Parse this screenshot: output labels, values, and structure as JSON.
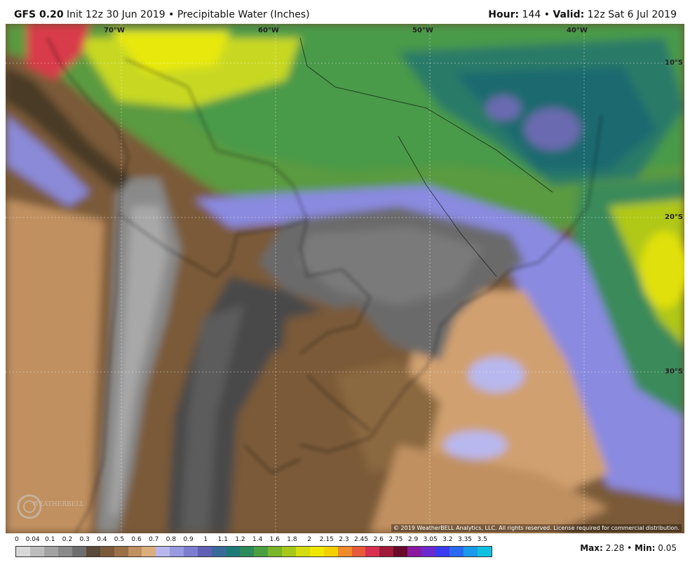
{
  "header": {
    "model": "GFS 0.20",
    "init": "Init 12z 30 Jun 2019",
    "separator": "•",
    "product": "Precipitable Water (Inches)",
    "hour_label": "Hour:",
    "hour_value": "144",
    "valid_label": "Valid:",
    "valid_value": "12z Sat 6 Jul 2019"
  },
  "map": {
    "lon_labels": [
      "70°W",
      "60°W",
      "50°W",
      "40°W"
    ],
    "lat_labels": [
      "10°S",
      "20°S",
      "30°S"
    ],
    "copyright": "© 2019 WeatherBELL Analytics, LLC. All rights reserved. License required for commercial distribution.",
    "logo_text": "WEATHERBELL"
  },
  "legend": {
    "ticks": [
      "0",
      "0.04",
      "0.1",
      "0.2",
      "0.3",
      "0.4",
      "0.5",
      "0.6",
      "0.7",
      "0.8",
      "0.9",
      "1",
      "1.1",
      "1.2",
      "1.4",
      "1.6",
      "1.8",
      "2",
      "2.15",
      "2.3",
      "2.45",
      "2.6",
      "2.75",
      "2.9",
      "3.05",
      "3.2",
      "3.35",
      "3.5"
    ],
    "colors": [
      "#d8d8d8",
      "#bdbdbd",
      "#a3a3a3",
      "#8a8a8a",
      "#6e6e6e",
      "#5a4a38",
      "#7a5a3a",
      "#9a7046",
      "#c09060",
      "#dcae7c",
      "#b8b8ee",
      "#9a9ae0",
      "#7e7ed0",
      "#6060b4",
      "#3a6a9a",
      "#1e7a78",
      "#2a8a5a",
      "#4aa040",
      "#7ab428",
      "#a6c818",
      "#d4dc10",
      "#f0e800",
      "#f5d000",
      "#f08a2a",
      "#e85a3a",
      "#d83050",
      "#a01a3a",
      "#6a0a2a",
      "#8a1aa0",
      "#6a2ad0",
      "#3a3af0",
      "#2a6af0",
      "#1a9ae8",
      "#10c0e0"
    ]
  },
  "stats": {
    "max_label": "Max:",
    "max_value": "2.28",
    "min_label": "Min:",
    "min_value": "0.05"
  }
}
